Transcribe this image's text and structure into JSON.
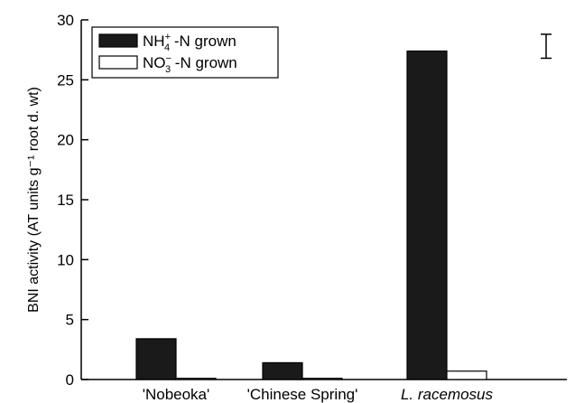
{
  "chart_data": {
    "type": "bar",
    "title": "",
    "xlabel": "",
    "ylabel": "BNI activity (AT units g⁻¹ root d. wt)",
    "ylim": [
      0,
      30
    ],
    "yticks": [
      0,
      5,
      10,
      15,
      20,
      25,
      30
    ],
    "categories": [
      "'Nobeoka'",
      "'Chinese Spring'",
      "L. racemosus"
    ],
    "category_italic": [
      false,
      false,
      true
    ],
    "series": [
      {
        "name": "NH4+ -N grown",
        "name_base": "NH",
        "name_sub": "4",
        "name_sup": "+",
        "name_rest": " -N grown",
        "color": "#1a1a1a",
        "values": [
          3.4,
          1.4,
          27.4
        ]
      },
      {
        "name": "NO3- -N grown",
        "name_base": "NO",
        "name_sub": "3",
        "name_sup": "−",
        "name_rest": " -N grown",
        "color": "#ffffff",
        "values": [
          0.1,
          0.1,
          0.7
        ]
      }
    ],
    "error_bar": {
      "low": 26.8,
      "high": 28.8
    },
    "legend_position": "top-left",
    "grid": false
  }
}
